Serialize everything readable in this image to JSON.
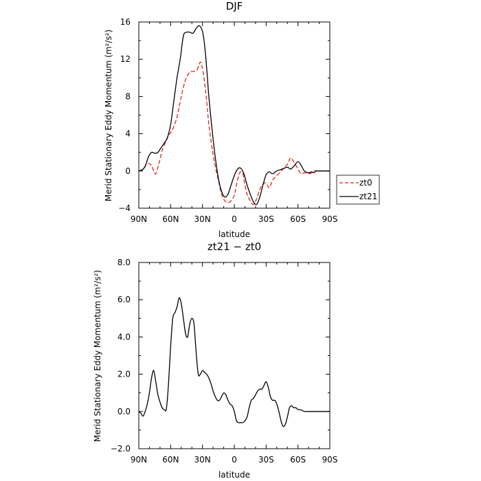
{
  "chart_data": [
    {
      "type": "line",
      "title": "DJF",
      "xlabel": "latitude",
      "ylabel": "Merid Stationary Eddy Momentum (m²/s²)",
      "xlim": [
        90,
        -90
      ],
      "ylim": [
        -4,
        16
      ],
      "x_ticks": [
        90,
        60,
        30,
        0,
        -30,
        -60,
        -90
      ],
      "x_tick_labels": [
        "90N",
        "60N",
        "30N",
        "0",
        "30S",
        "60S",
        "90S"
      ],
      "y_ticks": [
        -4,
        0,
        4,
        8,
        12,
        16
      ],
      "y_tick_labels": [
        "−4",
        "0",
        "4",
        "8",
        "12",
        "16"
      ],
      "legend_position": "right",
      "series": [
        {
          "name": "zt0",
          "color": "#e8211d",
          "dash": "dashed",
          "x": [
            90,
            86,
            82,
            78,
            76,
            74,
            71,
            68,
            65,
            62,
            58,
            54,
            50,
            46,
            42,
            38,
            35,
            32,
            30,
            28,
            26,
            24,
            21,
            18,
            15,
            12,
            9,
            6,
            3,
            0,
            -2,
            -5,
            -8,
            -10,
            -12,
            -15,
            -18,
            -21,
            -24,
            -27,
            -30,
            -33,
            -36,
            -40,
            -45,
            -50,
            -53,
            -56,
            -60,
            -63,
            -66,
            -70,
            -73,
            -75,
            -77,
            -79,
            -81,
            -83,
            -85,
            -87,
            -90
          ],
          "y": [
            0,
            0.2,
            0.8,
            0.6,
            0,
            -0.3,
            0.8,
            2.2,
            3.0,
            3.8,
            4.5,
            5.8,
            8.0,
            9.8,
            10.6,
            10.7,
            10.9,
            11.7,
            11.0,
            9.5,
            7.5,
            5.0,
            2.5,
            0.5,
            -1.0,
            -2.5,
            -3.2,
            -3.4,
            -3.2,
            -2.6,
            -1.5,
            -0.2,
            -0.3,
            -1.5,
            -2.5,
            -3.2,
            -3.6,
            -3.0,
            -2.0,
            -1.4,
            -1.3,
            -1.8,
            -1.0,
            -0.5,
            0.1,
            0.7,
            1.4,
            1.0,
            0.2,
            -0.3,
            -0.2,
            -0.3,
            -0.2,
            0.0,
            0.0,
            0.0,
            0.0,
            0.0,
            0.0,
            0.0,
            0.0
          ]
        },
        {
          "name": "zt21",
          "color": "#000000",
          "dash": "solid",
          "x": [
            90,
            87,
            84,
            81,
            78,
            75,
            72,
            69,
            66,
            63,
            60,
            57,
            54,
            51,
            48,
            45,
            42,
            39,
            36,
            33,
            30,
            28,
            26,
            24,
            21,
            18,
            15,
            12,
            9,
            6,
            3,
            0,
            -3,
            -6,
            -9,
            -12,
            -15,
            -18,
            -21,
            -24,
            -27,
            -30,
            -33,
            -36,
            -40,
            -45,
            -50,
            -53,
            -56,
            -60,
            -63,
            -66,
            -70,
            -73,
            -75,
            -77,
            -79,
            -81,
            -83,
            -85,
            -87,
            -90
          ],
          "y": [
            0,
            0.1,
            0.5,
            1.5,
            2.0,
            1.9,
            2.0,
            2.5,
            3.0,
            3.6,
            5.0,
            7.5,
            10.0,
            12.0,
            14.5,
            14.9,
            14.9,
            14.8,
            15.3,
            15.6,
            15.0,
            13.5,
            11.0,
            8.0,
            4.5,
            1.5,
            -0.8,
            -2.2,
            -2.8,
            -2.5,
            -1.5,
            -0.5,
            0.2,
            0.3,
            -0.3,
            -1.5,
            -2.5,
            -3.3,
            -3.6,
            -2.8,
            -1.5,
            -0.4,
            -0.1,
            -0.3,
            0.0,
            0.2,
            0.4,
            0.2,
            0.5,
            1.0,
            0.6,
            0.0,
            -0.2,
            -0.1,
            -0.2,
            0.0,
            0.0,
            0.0,
            0.0,
            0.0,
            0.0,
            0.0
          ]
        }
      ]
    },
    {
      "type": "line",
      "title": "zt21 − zt0",
      "xlabel": "latitude",
      "ylabel": "Merid Stationary Eddy Momentum (m²/s²)",
      "xlim": [
        90,
        -90
      ],
      "ylim": [
        -2,
        8
      ],
      "x_ticks": [
        90,
        60,
        30,
        0,
        -30,
        -60,
        -90
      ],
      "x_tick_labels": [
        "90N",
        "60N",
        "30N",
        "0",
        "30S",
        "60S",
        "90S"
      ],
      "y_ticks": [
        -2,
        0,
        2,
        4,
        6,
        8
      ],
      "y_tick_labels": [
        "−2.0",
        "0.0",
        "2.0",
        "4.0",
        "6.0",
        "8.0"
      ],
      "series": [
        {
          "color": "#000000",
          "dash": "solid",
          "x": [
            90,
            88,
            86,
            84,
            82,
            80,
            78,
            76,
            74,
            72,
            70,
            68,
            66,
            64,
            62,
            60,
            58,
            56,
            54,
            52,
            50,
            48,
            46,
            44,
            42,
            40,
            38,
            36,
            34,
            32,
            30,
            28,
            26,
            24,
            22,
            20,
            18,
            16,
            14,
            12,
            10,
            8,
            6,
            4,
            2,
            0,
            -2,
            -4,
            -6,
            -8,
            -10,
            -12,
            -14,
            -16,
            -18,
            -20,
            -22,
            -24,
            -26,
            -28,
            -30,
            -32,
            -34,
            -36,
            -38,
            -40,
            -42,
            -44,
            -46,
            -48,
            -50,
            -52,
            -54,
            -56,
            -58,
            -60,
            -62,
            -64,
            -66,
            -68,
            -70,
            -72,
            -74,
            -76,
            -78,
            -80,
            -82,
            -84,
            -86,
            -88,
            -90
          ],
          "y": [
            0,
            -0.1,
            -0.25,
            0,
            0.4,
            1.0,
            1.8,
            2.2,
            1.6,
            0.9,
            0.5,
            0.2,
            0.1,
            0.15,
            1.5,
            3.5,
            5.0,
            5.3,
            5.6,
            6.1,
            5.8,
            5.0,
            4.2,
            4.0,
            4.7,
            5.0,
            4.7,
            3.2,
            2.0,
            2.0,
            2.2,
            2.1,
            2.0,
            1.8,
            1.5,
            1.1,
            0.8,
            0.6,
            0.6,
            0.8,
            1.0,
            0.9,
            0.6,
            0.4,
            0.3,
            0.0,
            -0.5,
            -0.6,
            -0.6,
            -0.6,
            -0.5,
            -0.3,
            0.2,
            0.6,
            0.7,
            0.9,
            1.1,
            1.2,
            1.2,
            1.4,
            1.6,
            1.3,
            0.8,
            0.6,
            0.6,
            0.4,
            0.0,
            -0.5,
            -0.8,
            -0.7,
            -0.3,
            0.2,
            0.3,
            0.2,
            0.2,
            0.1,
            0.1,
            0.05,
            0.0,
            0.0,
            0.0,
            0.0,
            0.0,
            0.0,
            0.0,
            0.0,
            0.0,
            0.0,
            0.0,
            0.0,
            0.0
          ]
        }
      ]
    }
  ]
}
